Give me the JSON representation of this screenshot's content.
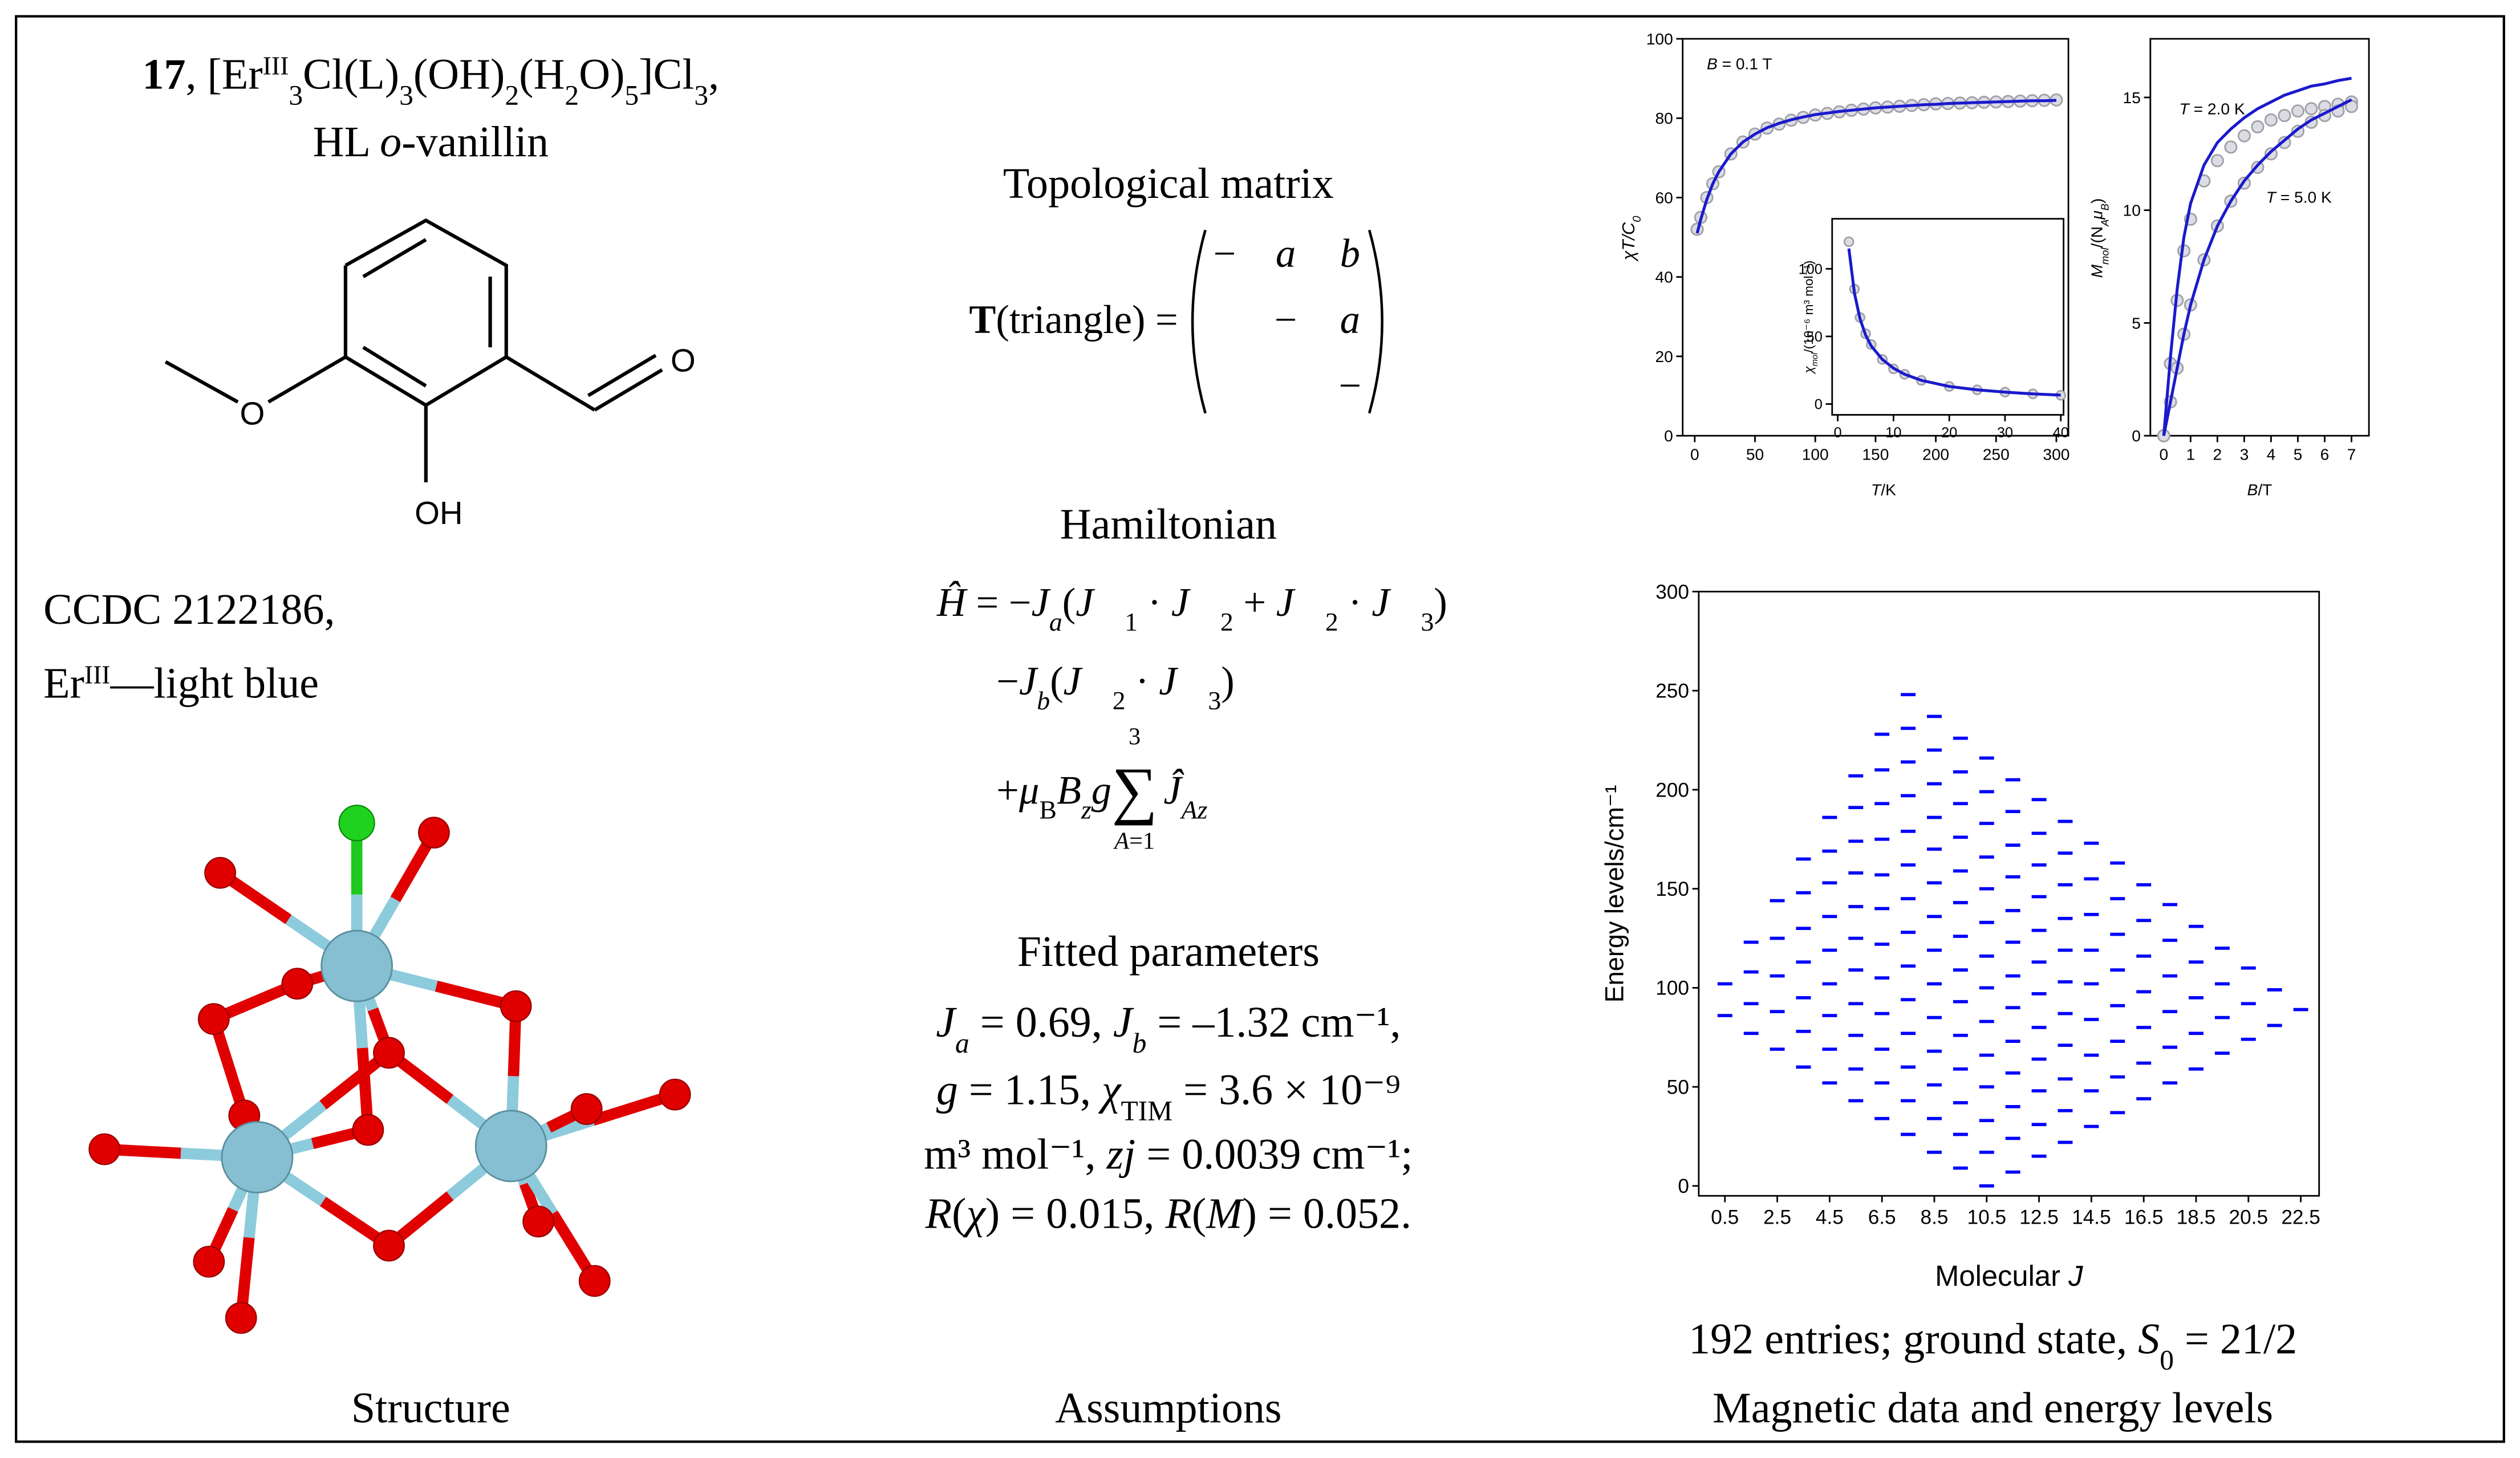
{
  "left": {
    "formula": [
      "17",
      ", [Er",
      "III",
      "3",
      "Cl(L)",
      "3",
      "(OH)",
      "2",
      "(H",
      "2",
      "O)",
      "5",
      "]Cl",
      "3",
      ","
    ],
    "ligand": [
      "HL ",
      "o",
      "-vanillin"
    ],
    "atoms": [
      "O",
      "O",
      "OH"
    ],
    "ccdc": "CCDC 2122186,",
    "er_label": [
      "Er",
      "III",
      "—light blue"
    ],
    "caption": "Structure"
  },
  "middle": {
    "topo_title": "Topological matrix",
    "topo_lhs": [
      "T",
      "(triangle) ="
    ],
    "matrix": [
      [
        "−",
        "a",
        "b"
      ],
      [
        "−",
        "a"
      ],
      [
        "−"
      ]
    ],
    "ham_title": "Hamiltonian",
    "ham_line1": [
      "Ĥ",
      " = −",
      "J",
      "a",
      "(",
      "J⃗",
      "1",
      " · ",
      "J⃗",
      "2",
      " + ",
      "J⃗",
      "2",
      " · ",
      "J⃗",
      "3",
      ")"
    ],
    "ham_line2": [
      "−",
      "J",
      "b",
      "(",
      "J⃗",
      "2",
      " · ",
      "J⃗",
      "3",
      ")"
    ],
    "ham_line3": [
      "+",
      "μ",
      "B",
      "B",
      "z",
      "g"
    ],
    "sum_symbol": "∑",
    "sum_upper": "3",
    "sum_lower": [
      "A",
      "=1"
    ],
    "sum_term": [
      "Ĵ",
      "Az"
    ],
    "fit_title": "Fitted parameters",
    "fit_line1": [
      "J",
      "a",
      " = 0.69, ",
      "J",
      "b",
      " = –1.32 cm⁻¹,"
    ],
    "fit_line2": [
      "g",
      " = 1.15, ",
      "χ",
      "TIM",
      " = 3.6 × 10⁻⁹"
    ],
    "fit_line3": [
      "m³ mol⁻¹, ",
      "zj",
      " = 0.0039 cm⁻¹;"
    ],
    "fit_line4": [
      "R",
      "(",
      "χ",
      ") = 0.015, ",
      "R",
      "(",
      "M",
      ") = 0.052."
    ],
    "caption": "Assumptions"
  },
  "right": {
    "summary": [
      "192 entries; ground state, ",
      "S",
      "0",
      " = 21/2"
    ],
    "caption": "Magnetic data and energy levels"
  },
  "chart_data": [
    {
      "type": "scatter",
      "ylabel": [
        "χT/C",
        "0"
      ],
      "xlabel": [
        "T",
        "/K"
      ],
      "annotation": [
        "B",
        " = 0.1 T"
      ],
      "xlim": [
        -10,
        310
      ],
      "ylim": [
        0,
        100
      ],
      "xticks": [
        0,
        50,
        100,
        150,
        200,
        250,
        300
      ],
      "yticks": [
        0,
        20,
        40,
        60,
        80,
        100
      ],
      "x": [
        2,
        5,
        10,
        15,
        20,
        30,
        40,
        50,
        60,
        70,
        80,
        90,
        100,
        110,
        120,
        130,
        140,
        150,
        160,
        170,
        180,
        190,
        200,
        210,
        220,
        230,
        240,
        250,
        260,
        270,
        280,
        290,
        300
      ],
      "series": [
        {
          "color": "#a0a0a8",
          "mark": "circle",
          "values": [
            52,
            55,
            60,
            63.5,
            66.5,
            71,
            74,
            76,
            77.5,
            78.5,
            79.5,
            80.2,
            80.8,
            81.2,
            81.6,
            82,
            82.3,
            82.6,
            82.8,
            83,
            83.2,
            83.4,
            83.6,
            83.7,
            83.8,
            83.9,
            84,
            84.1,
            84.2,
            84.3,
            84.4,
            84.5,
            84.6
          ]
        },
        {
          "color": "#1a1acc",
          "mark": "line",
          "values": [
            51,
            54.5,
            59.5,
            63.5,
            66.5,
            71,
            74,
            76,
            77.6,
            78.7,
            79.6,
            80.3,
            80.9,
            81.3,
            81.7,
            82,
            82.3,
            82.6,
            82.8,
            83,
            83.2,
            83.4,
            83.5,
            83.7,
            83.8,
            83.9,
            84,
            84.1,
            84.2,
            84.3,
            84.4,
            84.4,
            84.5
          ]
        }
      ]
    },
    {
      "type": "scatter",
      "ylabel": [
        "χ",
        "mol",
        "/(10⁻⁶ m³ mol⁻¹)"
      ],
      "xlim": [
        -1,
        40.5
      ],
      "ylim": [
        -8,
        137
      ],
      "xticks": [
        0,
        10,
        20,
        30,
        40
      ],
      "yticks": [
        0,
        50,
        100
      ],
      "x": [
        2,
        3,
        4,
        5,
        6,
        8,
        10,
        12,
        15,
        20,
        25,
        30,
        35,
        40
      ],
      "series": [
        {
          "color": "#a0a0a8",
          "mark": "circle",
          "values": [
            120,
            85,
            64,
            52,
            44,
            33,
            26,
            22,
            17.5,
            13,
            10.5,
            8.8,
            7.5,
            6.5
          ]
        },
        {
          "color": "#1a1acc",
          "mark": "line",
          "values": [
            115,
            82,
            63,
            51,
            43,
            33,
            26.5,
            22,
            17.5,
            13,
            10.5,
            8.8,
            7.5,
            6.6
          ]
        }
      ]
    },
    {
      "type": "scatter",
      "ylabel": [
        "M",
        "mol",
        "/(N",
        "A",
        "μ",
        "B",
        ")"
      ],
      "xlabel": [
        "B",
        "/T"
      ],
      "annotations": [
        [
          "T",
          " = 2.0 K"
        ],
        [
          "T",
          " = 5.0 K"
        ]
      ],
      "xlim": [
        -0.5,
        7.65
      ],
      "ylim": [
        0,
        17.6
      ],
      "xticks": [
        0,
        1,
        2,
        3,
        4,
        5,
        6,
        7
      ],
      "yticks": [
        0,
        5,
        10,
        15
      ],
      "x": [
        0,
        0.25,
        0.5,
        0.75,
        1,
        1.5,
        2,
        2.5,
        3,
        3.5,
        4,
        4.5,
        5,
        5.5,
        6,
        6.5,
        7
      ],
      "series": [
        {
          "color": "#a0a0a8",
          "mark": "circle",
          "values": [
            0,
            3.2,
            6,
            8.2,
            9.6,
            11.3,
            12.2,
            12.8,
            13.3,
            13.7,
            14,
            14.2,
            14.4,
            14.5,
            14.6,
            14.7,
            14.8
          ]
        },
        {
          "color": "#a0a0a8",
          "mark": "circle",
          "values": [
            0,
            1.5,
            3,
            4.5,
            5.8,
            7.8,
            9.3,
            10.4,
            11.2,
            11.9,
            12.5,
            13,
            13.5,
            13.9,
            14.2,
            14.4,
            14.6
          ]
        },
        {
          "color": "#1a1acc",
          "mark": "line",
          "values": [
            0,
            3.5,
            6.5,
            8.8,
            10.3,
            12,
            13,
            13.6,
            14.1,
            14.5,
            14.8,
            15.1,
            15.3,
            15.5,
            15.6,
            15.75,
            15.85
          ]
        },
        {
          "color": "#1a1acc",
          "mark": "line",
          "values": [
            0,
            1.5,
            3,
            4.5,
            5.8,
            7.8,
            9.3,
            10.4,
            11.3,
            12,
            12.6,
            13.1,
            13.6,
            14,
            14.3,
            14.6,
            14.9
          ]
        }
      ]
    },
    {
      "type": "scatter",
      "ylabel": "Energy levels/cm⁻¹",
      "xlabel": [
        "Molecular ",
        "J"
      ],
      "xlim": [
        -0.5,
        23.2
      ],
      "ylim": [
        -5,
        300
      ],
      "xticks": [
        0.5,
        2.5,
        4.5,
        6.5,
        8.5,
        10.5,
        12.5,
        14.5,
        16.5,
        18.5,
        20.5,
        22.5
      ],
      "yticks": [
        0,
        50,
        100,
        150,
        200,
        250,
        300
      ],
      "x": [
        0.5,
        1.5,
        2.5,
        3.5,
        4.5,
        5.5,
        6.5,
        7.5,
        8.5,
        9.5,
        10.5,
        11.5,
        12.5,
        13.5,
        14.5,
        15.5,
        16.5,
        17.5,
        18.5,
        19.5,
        20.5,
        21.5,
        22.5
      ],
      "series": [
        {
          "color": "#0000ff",
          "mark": "dash",
          "values": [
            [
              86,
              102
            ],
            [
              77,
              92,
              108,
              123
            ],
            [
              69,
              88,
              106,
              125,
              144
            ],
            [
              60,
              78,
              95,
              113,
              130,
              148,
              165
            ],
            [
              52,
              69,
              86,
              102,
              119,
              136,
              153,
              169,
              186
            ],
            [
              43,
              59,
              76,
              92,
              109,
              125,
              141,
              158,
              174,
              191,
              207
            ],
            [
              34,
              52,
              69,
              87,
              105,
              122,
              140,
              157,
              175,
              193,
              210,
              228
            ],
            [
              26,
              43,
              60,
              77,
              94,
              111,
              128,
              145,
              162,
              179,
              197,
              214,
              231,
              248
            ],
            [
              17,
              34,
              51,
              68,
              85,
              102,
              119,
              136,
              153,
              170,
              186,
              203,
              220,
              237
            ],
            [
              9,
              26,
              42,
              59,
              76,
              93,
              109,
              126,
              143,
              159,
              176,
              193,
              209,
              226
            ],
            [
              0,
              17,
              33,
              50,
              66,
              83,
              100,
              116,
              133,
              150,
              166,
              183,
              199,
              216
            ],
            [
              7,
              24,
              40,
              57,
              73,
              90,
              106,
              123,
              139,
              156,
              172,
              189,
              205
            ],
            [
              15,
              31,
              48,
              64,
              80,
              97,
              113,
              129,
              146,
              162,
              178,
              195
            ],
            [
              22,
              38,
              54,
              71,
              87,
              103,
              119,
              135,
              152,
              168,
              184
            ],
            [
              30,
              48,
              66,
              84,
              102,
              119,
              137,
              155,
              173
            ],
            [
              37,
              55,
              73,
              91,
              109,
              127,
              145,
              163
            ],
            [
              44,
              62,
              80,
              98,
              116,
              134,
              152
            ],
            [
              52,
              70,
              88,
              106,
              124,
              142
            ],
            [
              59,
              77,
              95,
              113,
              131
            ],
            [
              67,
              85,
              102,
              120
            ],
            [
              74,
              92,
              110
            ],
            [
              81,
              99
            ],
            [
              89
            ]
          ]
        }
      ]
    }
  ]
}
